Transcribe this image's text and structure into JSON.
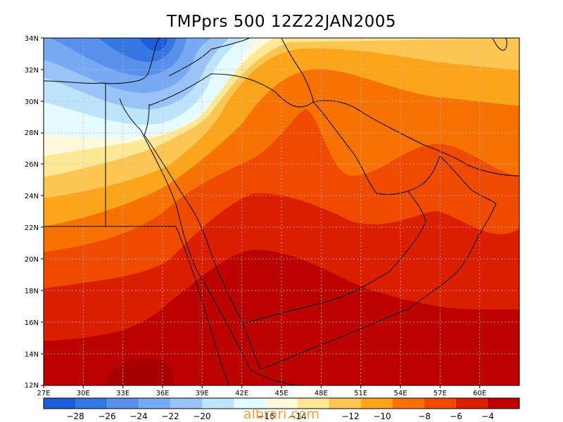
{
  "title": "TMPprs 500  12Z22JAN2005",
  "watermark": "albrari.com",
  "map": {
    "lon_range": [
      27,
      63
    ],
    "lat_range": [
      12,
      34
    ],
    "lon_ticks": [
      "27E",
      "30E",
      "33E",
      "36E",
      "39E",
      "42E",
      "45E",
      "48E",
      "51E",
      "54E",
      "57E",
      "60E"
    ],
    "lat_ticks": [
      "12N",
      "14N",
      "16N",
      "18N",
      "20N",
      "22N",
      "24N",
      "26N",
      "28N",
      "30N",
      "32N",
      "34N"
    ],
    "grid": true,
    "variable": "500 hPa temperature (°C)"
  },
  "colorbar": {
    "colors": [
      "#1a5ed8",
      "#3676e0",
      "#5890ec",
      "#78aaf4",
      "#9ac4f8",
      "#bee4fc",
      "#e4fcff",
      "#fffadc",
      "#fde896",
      "#fdc652",
      "#fda51a",
      "#f77200",
      "#ef4a00",
      "#dc1e00",
      "#bb0000"
    ],
    "labels": [
      "−28",
      "−26",
      "−24",
      "−22",
      "−20",
      "−16",
      "−14",
      "−12",
      "−10",
      "−8",
      "−6",
      "−4"
    ]
  }
}
